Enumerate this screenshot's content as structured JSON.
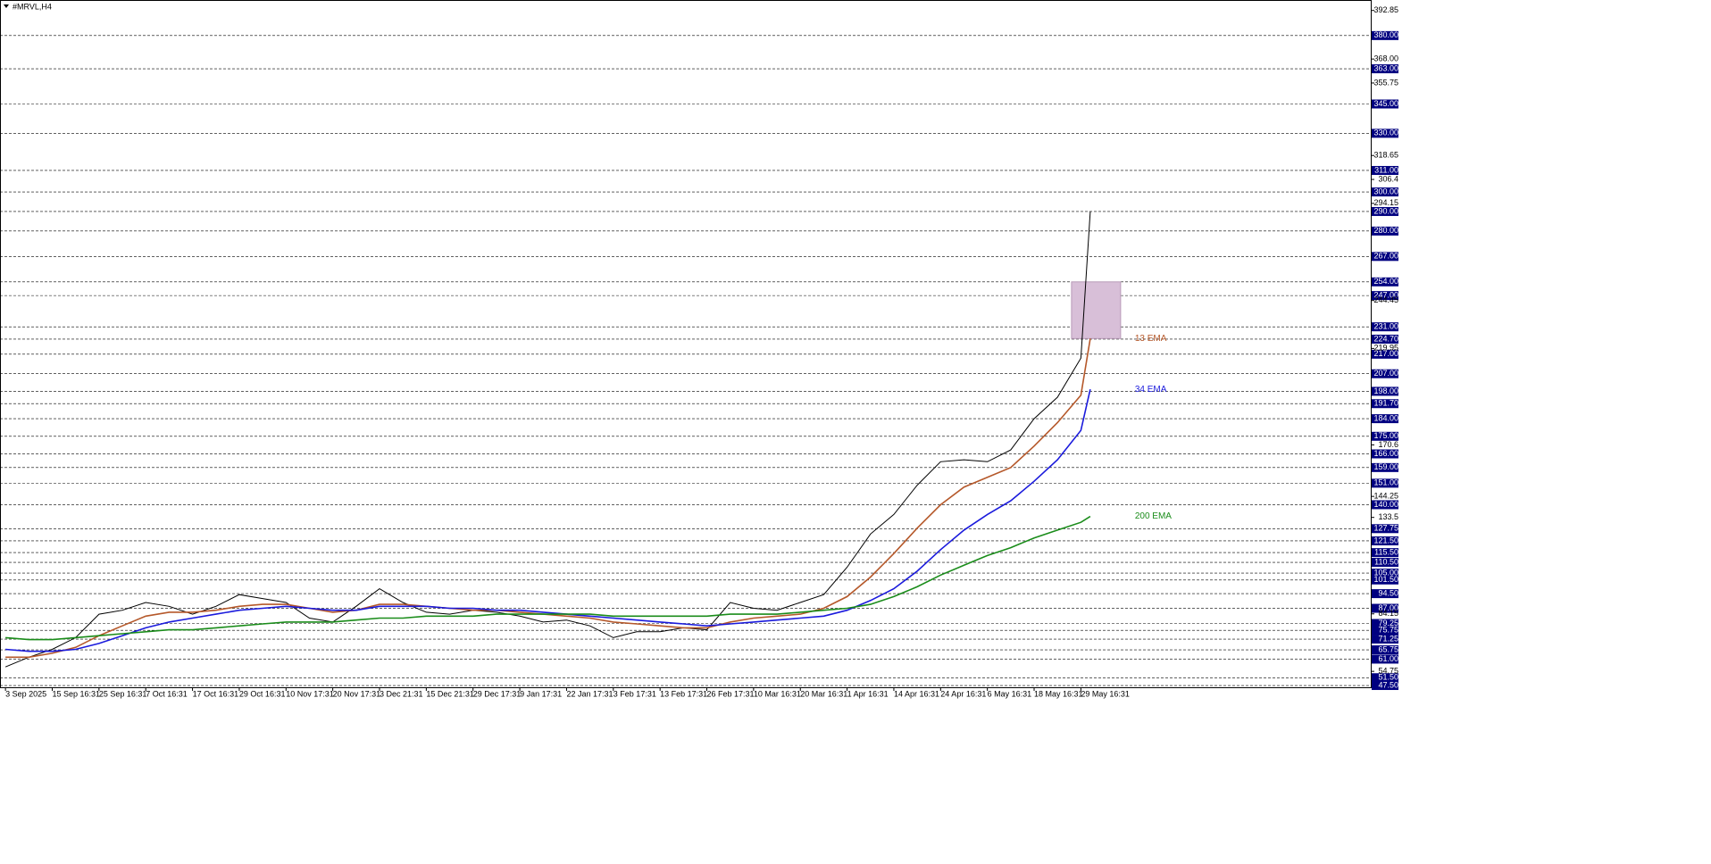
{
  "chart_data": {
    "type": "line",
    "title": "#MRVL,H4",
    "x": [
      0,
      0.5,
      1,
      1.5,
      2,
      2.5,
      3,
      3.5,
      4,
      4.5,
      5,
      5.5,
      6,
      6.5,
      7,
      7.5,
      8,
      8.5,
      9,
      9.5,
      10,
      10.5,
      11,
      11.5,
      12,
      12.5,
      13,
      13.5,
      14,
      14.5,
      15,
      15.5,
      16,
      16.5,
      17,
      17.5,
      18,
      18.5,
      19,
      19.5,
      20,
      20.5,
      21,
      21.5,
      22,
      22.5,
      23,
      23.2
    ],
    "series": [
      {
        "color": "#000000",
        "values": [
          57,
          62,
          66,
          72,
          84,
          86,
          90,
          88,
          84,
          88,
          94,
          92,
          90,
          82,
          80,
          88,
          97,
          90,
          85,
          84,
          86,
          85,
          83,
          80,
          81,
          78,
          72,
          75,
          75,
          77,
          76,
          90,
          87,
          86,
          90,
          94,
          108,
          125,
          135,
          150,
          162,
          163,
          162,
          168,
          184,
          195,
          215,
          290
        ]
      },
      {
        "name": "13 EMA",
        "color": "#b5582a",
        "values": [
          62,
          62,
          64,
          67,
          73,
          78,
          83,
          85,
          85,
          86,
          88,
          89,
          89,
          87,
          85,
          86,
          89,
          89,
          88,
          87,
          86,
          86,
          85,
          84,
          83,
          82,
          80,
          79,
          78,
          77,
          77,
          80,
          82,
          83,
          84,
          87,
          93,
          103,
          115,
          128,
          140,
          149,
          154,
          159,
          170,
          182,
          196,
          225
        ]
      },
      {
        "name": "34 EMA",
        "color": "#1a1adc",
        "values": [
          66,
          65,
          65,
          66,
          69,
          73,
          77,
          80,
          82,
          84,
          86,
          87,
          88,
          87,
          86,
          86,
          88,
          88,
          88,
          87,
          87,
          86,
          86,
          85,
          84,
          83,
          82,
          81,
          80,
          79,
          78,
          79,
          80,
          81,
          82,
          83,
          86,
          91,
          97,
          106,
          117,
          127,
          135,
          142,
          152,
          163,
          178,
          199
        ]
      },
      {
        "name": "200 EMA",
        "color": "#1a8c1a",
        "values": [
          72,
          71,
          71,
          72,
          73,
          74,
          75,
          76,
          76,
          77,
          78,
          79,
          80,
          80,
          80,
          81,
          82,
          82,
          83,
          83,
          83,
          84,
          84,
          84,
          84,
          84,
          83,
          83,
          83,
          83,
          83,
          84,
          84,
          84,
          85,
          86,
          87,
          89,
          93,
          98,
          104,
          109,
          114,
          118,
          123,
          127,
          131,
          134
        ]
      }
    ],
    "zone": {
      "xlim": [
        22.8,
        23.85
      ],
      "ylim": [
        225,
        254
      ],
      "color": "#d8bfd8"
    },
    "xlim": [
      -0.06,
      29.2
    ],
    "ylim": [
      46.6,
      398.2
    ],
    "xticks": [
      {
        "value": 0,
        "label": "3 Sep 2025"
      },
      {
        "value": 1,
        "label": "15 Sep 16:31"
      },
      {
        "value": 2,
        "label": "25 Sep 16:31"
      },
      {
        "value": 3,
        "label": "7 Oct 16:31"
      },
      {
        "value": 4,
        "label": "17 Oct 16:31"
      },
      {
        "value": 5,
        "label": "29 Oct 16:31"
      },
      {
        "value": 6,
        "label": "10 Nov 17:31"
      },
      {
        "value": 7,
        "label": "20 Nov 17:31"
      },
      {
        "value": 8,
        "label": "3 Dec 21:31"
      },
      {
        "value": 9,
        "label": "15 Dec 21:31"
      },
      {
        "value": 10,
        "label": "29 Dec 17:31"
      },
      {
        "value": 11,
        "label": "9 Jan 17:31"
      },
      {
        "value": 12,
        "label": "22 Jan 17:31"
      },
      {
        "value": 13,
        "label": "3 Feb 17:31"
      },
      {
        "value": 14,
        "label": "13 Feb 17:31"
      },
      {
        "value": 15,
        "label": "26 Feb 17:31"
      },
      {
        "value": 16,
        "label": "10 Mar 16:31"
      },
      {
        "value": 17,
        "label": "20 Mar 16:31"
      },
      {
        "value": 18,
        "label": "1 Apr 16:31"
      },
      {
        "value": 19,
        "label": "14 Apr 16:31"
      },
      {
        "value": 20,
        "label": "24 Apr 16:31"
      },
      {
        "value": 21,
        "label": "6 May 16:31"
      },
      {
        "value": 22,
        "label": "18 May 16:31"
      },
      {
        "value": 23,
        "label": "29 May 16:31"
      }
    ],
    "yticks": [
      392.85,
      {
        "value": 368,
        "label": "368.00"
      },
      355.75,
      318.65,
      306.4,
      294.15,
      244.45,
      219.95,
      170.6,
      144.25,
      133.5,
      84.15,
      54.75
    ],
    "levels": [
      {
        "value": 380,
        "label": "380.00"
      },
      {
        "value": 363,
        "label": "363.00"
      },
      {
        "value": 345,
        "label": "345.00"
      },
      {
        "value": 330,
        "label": "330.00"
      },
      {
        "value": 311,
        "label": "311.00"
      },
      {
        "value": 300,
        "label": "300.00"
      },
      {
        "value": 290,
        "label": "290.00"
      },
      {
        "value": 280,
        "label": "280.00"
      },
      {
        "value": 267,
        "label": "267.00"
      },
      {
        "value": 254,
        "label": "254.00"
      },
      {
        "value": 247,
        "label": "247.00"
      },
      {
        "value": 231,
        "label": "231.00"
      },
      {
        "value": 224.7,
        "label": "224.70"
      },
      {
        "value": 217,
        "label": "217.00"
      },
      {
        "value": 207,
        "label": "207.00"
      },
      {
        "value": 198,
        "label": "198.00"
      },
      {
        "value": 191.7,
        "label": "191.70"
      },
      {
        "value": 184,
        "label": "184.00"
      },
      {
        "value": 175,
        "label": "175.00"
      },
      {
        "value": 166,
        "label": "166.00"
      },
      {
        "value": 159,
        "label": "159.00"
      },
      {
        "value": 151,
        "label": "151.00"
      },
      {
        "value": 140,
        "label": "140.00"
      },
      {
        "value": 127.75,
        "label": "127.75"
      },
      {
        "value": 121.5,
        "label": "121.50"
      },
      {
        "value": 115.5,
        "label": "115.50"
      },
      {
        "value": 110.5,
        "label": "110.50"
      },
      {
        "value": 105,
        "label": "105.00"
      },
      {
        "value": 101.5,
        "label": "101.50"
      },
      {
        "value": 94.5,
        "label": "94.50"
      },
      {
        "value": 87,
        "label": "87.00"
      },
      {
        "value": 79.25,
        "label": "79.25"
      },
      {
        "value": 75.75,
        "label": "75.75"
      },
      {
        "value": 71.25,
        "label": "71.25"
      },
      {
        "value": 65.75,
        "label": "65.75"
      },
      {
        "value": 61,
        "label": "61.00"
      },
      {
        "value": 51.5,
        "label": "51.50"
      },
      {
        "value": 47.5,
        "label": "47.50"
      }
    ],
    "level_color": "#000080"
  }
}
